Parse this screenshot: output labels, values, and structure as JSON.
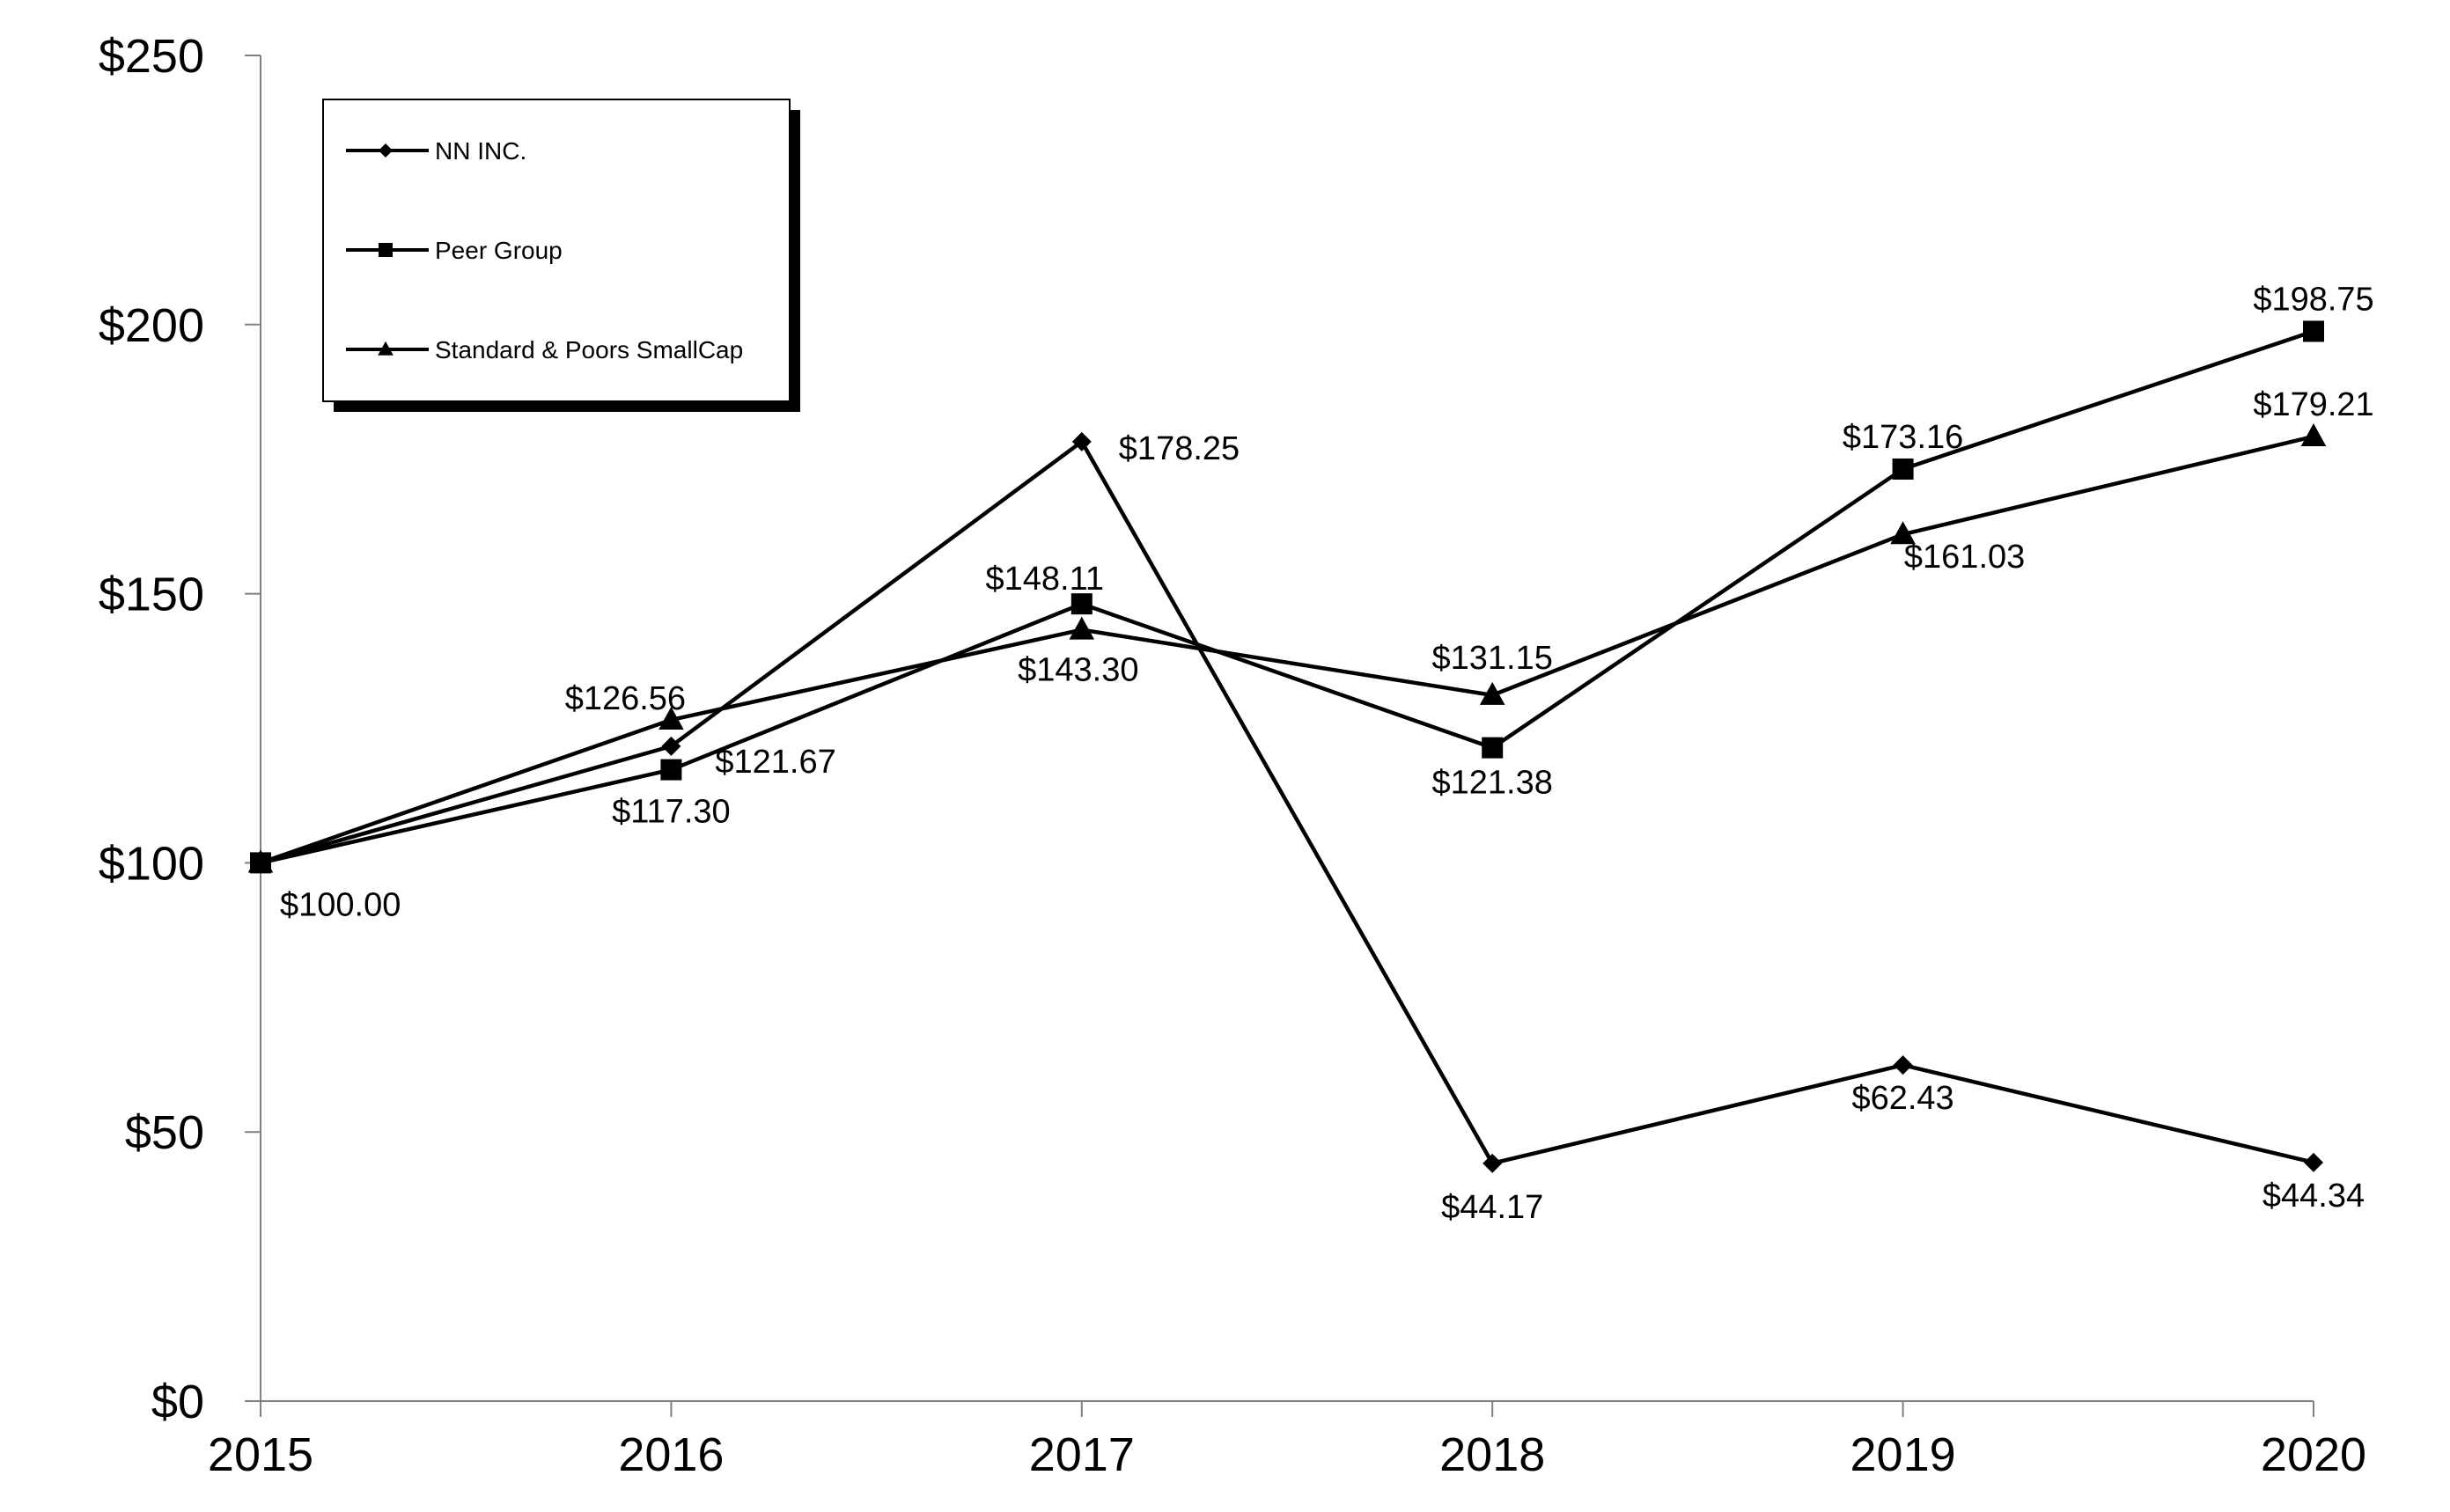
{
  "chart_data": {
    "type": "line",
    "title": "",
    "xlabel": "",
    "ylabel": "",
    "categories": [
      "2015",
      "2016",
      "2017",
      "2018",
      "2019",
      "2020"
    ],
    "ylim": [
      0,
      250
    ],
    "yticks": [
      {
        "value": 0,
        "label": "$0"
      },
      {
        "value": 50,
        "label": "$50"
      },
      {
        "value": 100,
        "label": "$100"
      },
      {
        "value": 150,
        "label": "$150"
      },
      {
        "value": 200,
        "label": "$200"
      },
      {
        "value": 250,
        "label": "$250"
      }
    ],
    "grid": false,
    "legend_position": "top-left",
    "series": [
      {
        "name": "NN INC.",
        "marker": "diamond",
        "values": [
          100.0,
          121.67,
          178.25,
          44.17,
          62.43,
          44.34
        ],
        "labels": [
          "$100.00",
          "$121.67",
          "$178.25",
          "$44.17",
          "$62.43",
          "$44.34"
        ]
      },
      {
        "name": "Peer Group",
        "marker": "square",
        "values": [
          100.0,
          117.3,
          148.11,
          121.38,
          173.16,
          198.75
        ],
        "labels": [
          "",
          "$117.30",
          "$148.11",
          "$121.38",
          "$173.16",
          "$198.75"
        ]
      },
      {
        "name": "Standard & Poors SmallCap",
        "marker": "triangle",
        "values": [
          100.0,
          126.56,
          143.3,
          131.15,
          161.03,
          179.21
        ],
        "labels": [
          "",
          "$126.56",
          "$143.30",
          "$131.15",
          "$161.03",
          "$179.21"
        ]
      }
    ],
    "colors": {
      "line": "#000000",
      "marker": "#000000"
    }
  }
}
